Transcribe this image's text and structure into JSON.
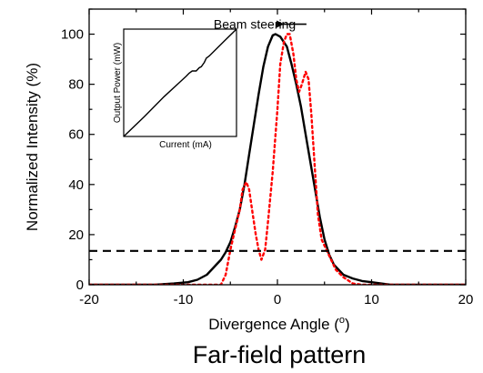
{
  "chart_data": {
    "type": "line",
    "xlabel": "Divergence Angle (o)",
    "xlabel_main": "Divergence Angle (",
    "xlabel_sup": "o",
    "xlabel_close": ")",
    "ylabel": "Normalized Intensity (%)",
    "caption": "Far-field pattern",
    "xlim": [
      -20,
      20
    ],
    "ylim": [
      0,
      110
    ],
    "x_ticks": [
      -20,
      -10,
      0,
      10,
      20
    ],
    "y_ticks": [
      0,
      20,
      40,
      60,
      80,
      100
    ],
    "grid": false,
    "annotations": [
      {
        "text": "Beam steering",
        "x": -6,
        "y": 104,
        "arrow_to_x": 0.3
      }
    ],
    "series": [
      {
        "style": "solid",
        "color": "#000000",
        "points": [
          [
            -20,
            0
          ],
          [
            -13,
            0
          ],
          [
            -11,
            0.5
          ],
          [
            -9.5,
            1
          ],
          [
            -8.5,
            2
          ],
          [
            -7.5,
            4
          ],
          [
            -7,
            6
          ],
          [
            -6.5,
            8
          ],
          [
            -6,
            10
          ],
          [
            -5.5,
            13
          ],
          [
            -5,
            17
          ],
          [
            -4.5,
            23
          ],
          [
            -4,
            30
          ],
          [
            -3.5,
            40
          ],
          [
            -3,
            52
          ],
          [
            -2.5,
            64
          ],
          [
            -2,
            76
          ],
          [
            -1.5,
            87
          ],
          [
            -1,
            95
          ],
          [
            -0.5,
            99.5
          ],
          [
            -0.2,
            100
          ],
          [
            0.3,
            99
          ],
          [
            1,
            95
          ],
          [
            1.5,
            88
          ],
          [
            2,
            80
          ],
          [
            2.5,
            71
          ],
          [
            3,
            60
          ],
          [
            3.5,
            49
          ],
          [
            4,
            38
          ],
          [
            4.5,
            27
          ],
          [
            5,
            18
          ],
          [
            5.5,
            12
          ],
          [
            6,
            8
          ],
          [
            6.5,
            6
          ],
          [
            7,
            4
          ],
          [
            8,
            2.5
          ],
          [
            9,
            1.5
          ],
          [
            10,
            1
          ],
          [
            11,
            0.5
          ],
          [
            12,
            0
          ],
          [
            20,
            0
          ]
        ]
      },
      {
        "style": "dotted",
        "color": "#ff0000",
        "points": [
          [
            -20,
            0
          ],
          [
            -6,
            0
          ],
          [
            -5.5,
            4
          ],
          [
            -5,
            14
          ],
          [
            -4.5,
            22
          ],
          [
            -4,
            30
          ],
          [
            -3.7,
            38
          ],
          [
            -3.3,
            41
          ],
          [
            -3,
            38
          ],
          [
            -2.7,
            30
          ],
          [
            -2.3,
            20
          ],
          [
            -2,
            14
          ],
          [
            -1.7,
            10
          ],
          [
            -1.3,
            14
          ],
          [
            -1,
            25
          ],
          [
            -0.5,
            45
          ],
          [
            0,
            70
          ],
          [
            0.3,
            88
          ],
          [
            0.7,
            97
          ],
          [
            1,
            100
          ],
          [
            1.3,
            100
          ],
          [
            1.7,
            92
          ],
          [
            2,
            82
          ],
          [
            2.3,
            77
          ],
          [
            2.6,
            80
          ],
          [
            3,
            85
          ],
          [
            3.3,
            82
          ],
          [
            3.6,
            68
          ],
          [
            4,
            45
          ],
          [
            4.3,
            28
          ],
          [
            4.7,
            18
          ],
          [
            5.2,
            14
          ],
          [
            5.7,
            10
          ],
          [
            6.2,
            6
          ],
          [
            7,
            3
          ],
          [
            8,
            0.5
          ],
          [
            9,
            0
          ],
          [
            20,
            0
          ]
        ]
      },
      {
        "style": "dashed",
        "color": "#000000",
        "points": [
          [
            -20,
            13.5
          ],
          [
            20,
            13.5
          ]
        ]
      }
    ],
    "inset": {
      "type": "line",
      "xlabel": "Current (mA)",
      "ylabel": "Output Power (mW)",
      "points": [
        [
          0,
          0
        ],
        [
          0.2,
          0.18
        ],
        [
          0.4,
          0.37
        ],
        [
          0.55,
          0.5
        ],
        [
          0.62,
          0.56
        ],
        [
          0.65,
          0.59
        ],
        [
          0.68,
          0.61
        ],
        [
          0.72,
          0.61
        ],
        [
          0.75,
          0.64
        ],
        [
          0.77,
          0.65
        ],
        [
          0.8,
          0.69
        ],
        [
          0.82,
          0.73
        ],
        [
          0.85,
          0.75
        ],
        [
          1,
          0.89
        ],
        [
          1.12,
          1.0
        ]
      ]
    }
  }
}
